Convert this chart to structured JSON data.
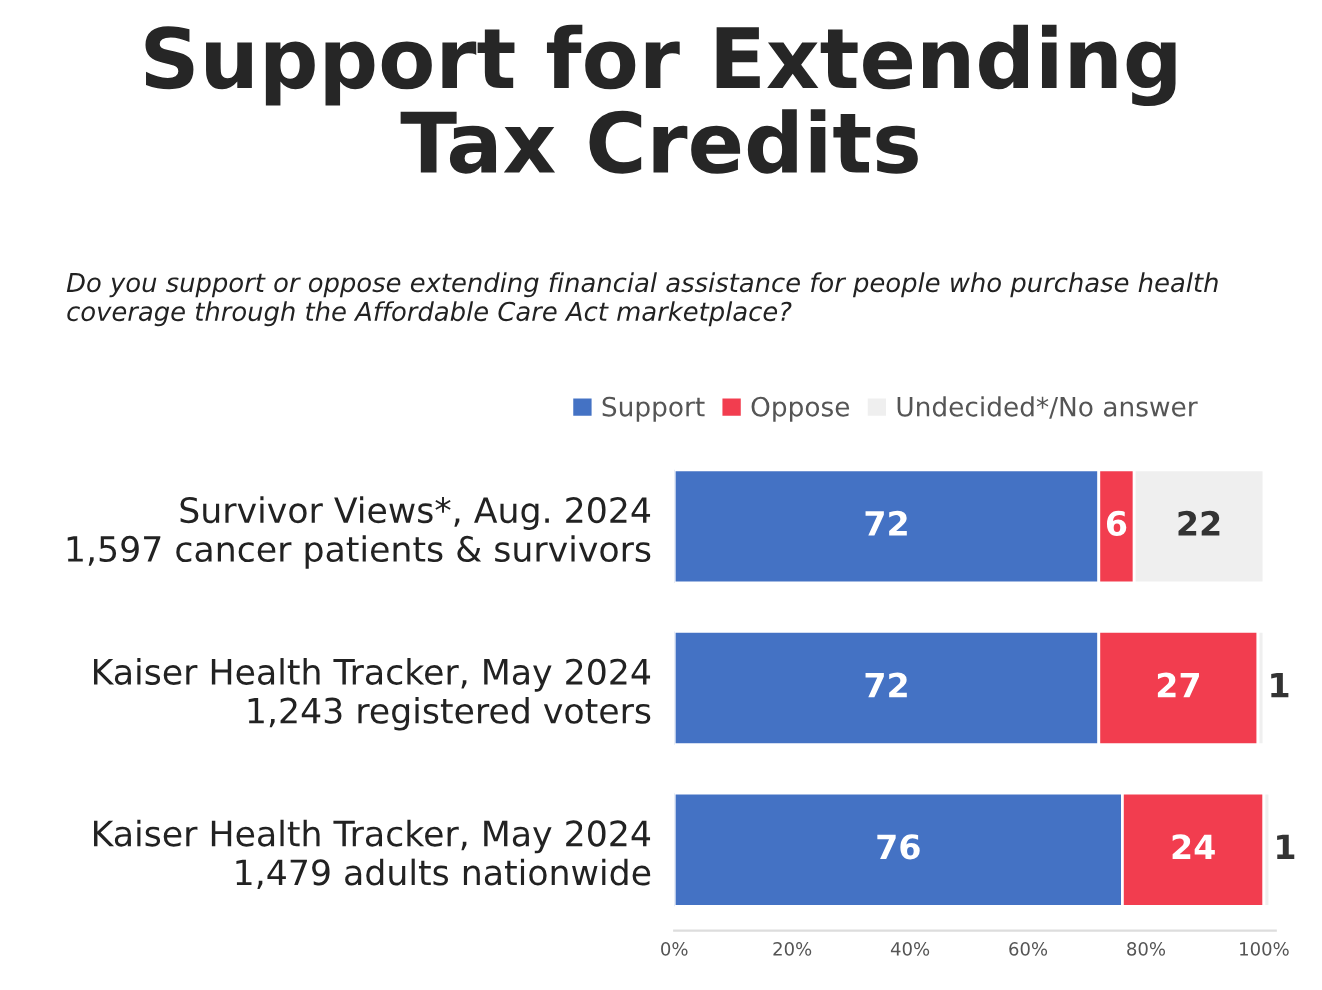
{
  "chart_data": {
    "type": "bar",
    "orientation": "horizontal",
    "stacked": true,
    "title": "Support for Extending\nTax Credits",
    "subtitle": "Do you support or oppose extending financial assistance for people who purchase health coverage through the Affordable Care Act marketplace?",
    "categories": [
      "Survivor Views*, Aug. 2024\n1,597 cancer patients & survivors",
      "Kaiser Health Tracker, May 2024\n1,243 registered voters",
      "Kaiser Health Tracker, May 2024\n1,479 adults nationwide"
    ],
    "series": [
      {
        "name": "Support",
        "color": "#4472c4",
        "values": [
          72,
          72,
          76
        ]
      },
      {
        "name": "Oppose",
        "color": "#f23d4f",
        "values": [
          6,
          27,
          24
        ]
      },
      {
        "name": "Undecided*/No answer",
        "color": "#efefef",
        "values": [
          22,
          1,
          1
        ]
      }
    ],
    "xlim": [
      0,
      102
    ],
    "xticks": [
      {
        "value": 0,
        "label": "0%"
      },
      {
        "value": 20,
        "label": "20%"
      },
      {
        "value": 40,
        "label": "40%"
      },
      {
        "value": 60,
        "label": "60%"
      },
      {
        "value": 80,
        "label": "80%"
      },
      {
        "value": 100,
        "label": "100%"
      }
    ],
    "data_labels": true,
    "legend": "top",
    "grid": false
  }
}
